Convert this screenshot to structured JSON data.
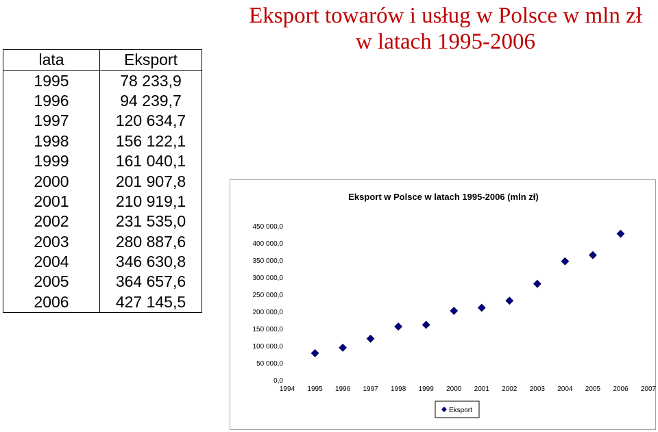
{
  "slide": {
    "title_line1": "Eksport towarów i usług w Polsce w mln zł",
    "title_line2": "w latach 1995-2006"
  },
  "table": {
    "headers": [
      "lata",
      "Eksport"
    ],
    "rows": [
      [
        "1995",
        "78 233,9"
      ],
      [
        "1996",
        "94 239,7"
      ],
      [
        "1997",
        "120 634,7"
      ],
      [
        "1998",
        "156 122,1"
      ],
      [
        "1999",
        "161 040,1"
      ],
      [
        "2000",
        "201 907,8"
      ],
      [
        "2001",
        "210 919,1"
      ],
      [
        "2002",
        "231 535,0"
      ],
      [
        "2003",
        "280 887,6"
      ],
      [
        "2004",
        "346 630,8"
      ],
      [
        "2005",
        "364 657,6"
      ],
      [
        "2006",
        "427 145,5"
      ]
    ]
  },
  "chart_data": {
    "type": "scatter",
    "title": "Eksport w Polsce w latach 1995-2006 (mln zł)",
    "xlabel": "",
    "ylabel": "",
    "xlim": [
      1994,
      2007
    ],
    "ylim": [
      0,
      450000
    ],
    "x_ticks": [
      "1994",
      "1995",
      "1996",
      "1997",
      "1998",
      "1999",
      "2000",
      "2001",
      "2002",
      "2003",
      "2004",
      "2005",
      "2006",
      "2007"
    ],
    "y_ticks": [
      "0,0",
      "50 000,0",
      "100 000,0",
      "150 000,0",
      "200 000,0",
      "250 000,0",
      "300 000,0",
      "350 000,0",
      "400 000,0",
      "450 000,0"
    ],
    "grid": false,
    "legend_position": "bottom",
    "series": [
      {
        "name": "Eksport",
        "color": "#000080",
        "marker": "diamond",
        "x": [
          1995,
          1996,
          1997,
          1998,
          1999,
          2000,
          2001,
          2002,
          2003,
          2004,
          2005,
          2006
        ],
        "y": [
          78233.9,
          94239.7,
          120634.7,
          156122.1,
          161040.1,
          201907.8,
          210919.1,
          231535.0,
          280887.6,
          346630.8,
          364657.6,
          427145.5
        ]
      }
    ]
  }
}
